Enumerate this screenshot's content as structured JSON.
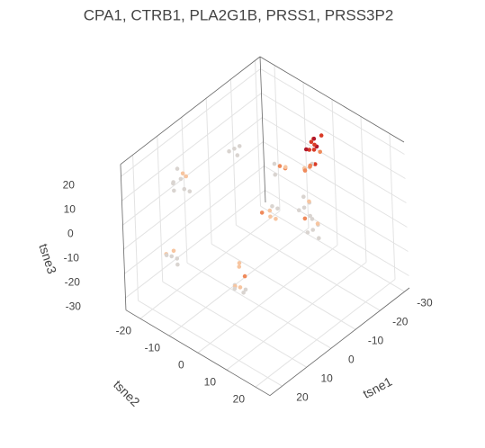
{
  "chart_data": {
    "type": "scatter3d",
    "title": "CPA1, CTRB1, PLA2G1B, PRSS1, PRSS3P2",
    "xlabel": "tsne1",
    "ylabel": "tsne2",
    "zlabel": "tsne3",
    "xlim": [
      -32,
      25
    ],
    "ylim": [
      -25,
      25
    ],
    "zlim": [
      -35,
      25
    ],
    "xticks": [
      -30,
      -20,
      -10,
      0,
      10,
      20
    ],
    "yticks": [
      -20,
      -10,
      0,
      10,
      20
    ],
    "zticks": [
      -30,
      -20,
      -10,
      0,
      10,
      20
    ],
    "grid": true,
    "series": [
      {
        "x": [
          -22,
          -23,
          -21,
          -24,
          -22,
          -23,
          -20,
          -25,
          -22,
          -21,
          -20,
          -19,
          -21,
          -20,
          -18,
          -22,
          -19,
          -16,
          -17,
          -15,
          -18,
          -16,
          -17,
          -15,
          -18,
          -19,
          -17,
          -20,
          -18,
          -19,
          -9,
          -8,
          -10,
          -7,
          -9,
          -11,
          -17,
          -16,
          -18,
          -15,
          -17,
          -7,
          -6,
          -8,
          -7,
          8,
          10,
          7,
          9,
          11,
          6,
          8,
          12,
          7,
          15,
          16,
          14,
          17,
          13,
          15,
          5,
          6,
          4,
          7,
          5,
          3,
          6,
          4,
          5
        ],
        "y": [
          1,
          2,
          3,
          0,
          2,
          1,
          2,
          2,
          4,
          0,
          2,
          1,
          3,
          0,
          2,
          1,
          3,
          3,
          4,
          2,
          3,
          5,
          2,
          4,
          4,
          5,
          3,
          4,
          6,
          3,
          -3,
          -2,
          -3,
          -4,
          -1,
          -2,
          -6,
          -7,
          -5,
          -6,
          -4,
          -13,
          -14,
          -12,
          -12,
          -19,
          -20,
          -18,
          -17,
          -19,
          -20,
          -16,
          -18,
          -21,
          -17,
          -18,
          -16,
          -17,
          -18,
          -15,
          -2,
          -3,
          -1,
          -2,
          -4,
          -2,
          0,
          -3,
          -2
        ],
        "z": [
          16,
          14,
          17,
          15,
          18,
          12,
          15,
          17,
          14,
          13,
          8,
          7,
          9,
          6,
          8,
          7,
          10,
          -5,
          -3,
          -6,
          -4,
          -7,
          -2,
          -8,
          -15,
          -13,
          -16,
          -14,
          -17,
          -12,
          -5,
          -6,
          -4,
          -5,
          -7,
          -5,
          5,
          6,
          4,
          3,
          6,
          15,
          14,
          16,
          13,
          10,
          9,
          11,
          8,
          11,
          10,
          7,
          9,
          12,
          -15,
          -14,
          -16,
          -13,
          -15,
          -17,
          -25,
          -24,
          -26,
          -23,
          -27,
          -22,
          -25,
          -18,
          -15
        ],
        "colors": [
          "#d93a26",
          "#b2182b",
          "#d93a26",
          "#ef8a5b",
          "#b2182b",
          "#d93a26",
          "#d93a26",
          "#d93a26",
          "#ef8a5b",
          "#b2182b",
          "#ef8a5b",
          "#ef8a5b",
          "#d93a26",
          "#f7c5a0",
          "#ef8a5b",
          "#d9d4d0",
          "#ef8a5b",
          "#d9d4d0",
          "#d9d4d0",
          "#d9d4d0",
          "#f7c5a0",
          "#d9d4d0",
          "#d9d4d0",
          "#ef8a5b",
          "#d9d4d0",
          "#d9d4d0",
          "#d9d4d0",
          "#f7c5a0",
          "#d9d4d0",
          "#d9d4d0",
          "#f7c5a0",
          "#f7c5a0",
          "#d9d4d0",
          "#ef8a5b",
          "#f7c5a0",
          "#d9d4d0",
          "#ef8a5b",
          "#d9d4d0",
          "#ef8a5b",
          "#d9d4d0",
          "#f7c5a0",
          "#d9d4d0",
          "#d9d4d0",
          "#d9d4d0",
          "#d9d4d0",
          "#d9d4d0",
          "#d9d4d0",
          "#f7c5a0",
          "#d9d4d0",
          "#d9d4d0",
          "#f7c5a0",
          "#d9d4d0",
          "#d9d4d0",
          "#d9d4d0",
          "#d9d4d0",
          "#f7c5a0",
          "#d9d4d0",
          "#d9d4d0",
          "#f7c5a0",
          "#d9d4d0",
          "#f7c5a0",
          "#d9d4d0",
          "#d9d4d0",
          "#f7c5a0",
          "#d9d4d0",
          "#ef8a5b",
          "#d9d4d0",
          "#f7c5a0",
          "#f7c5a0"
        ]
      }
    ]
  }
}
